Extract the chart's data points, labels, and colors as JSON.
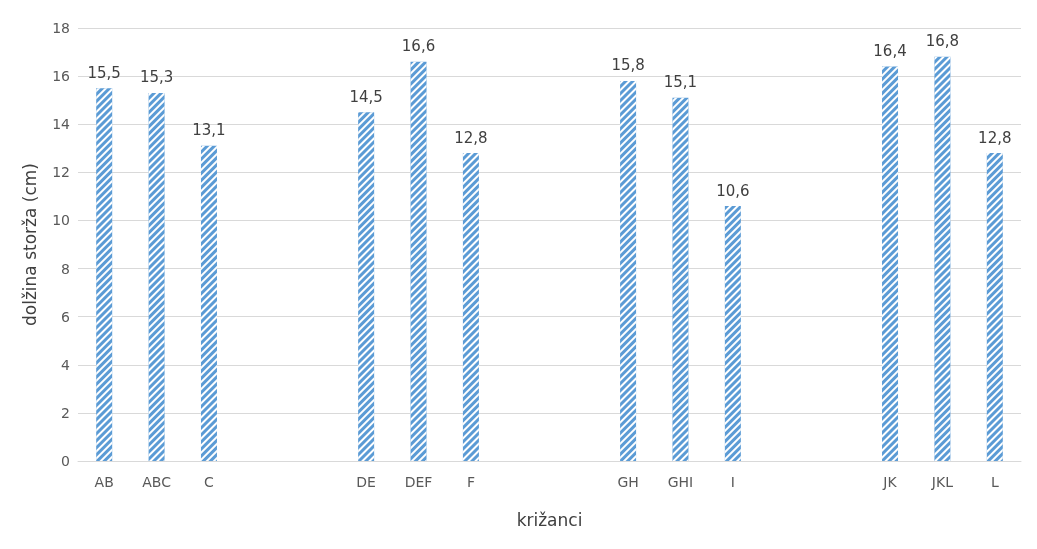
{
  "chart_data": {
    "type": "bar",
    "xlabel": "križanci",
    "ylabel": "dolžina storža (cm)",
    "categories": [
      "AB",
      "ABC",
      "C",
      null,
      null,
      "DE",
      "DEF",
      "F",
      null,
      null,
      "GH",
      "GHI",
      "I",
      null,
      null,
      "JK",
      "JKL",
      "L"
    ],
    "values": [
      15.5,
      15.3,
      13.1,
      null,
      null,
      14.5,
      16.6,
      12.8,
      null,
      null,
      15.8,
      15.1,
      10.6,
      null,
      null,
      16.4,
      16.8,
      12.8
    ],
    "value_labels": [
      "15,5",
      "15,3",
      "13,1",
      null,
      null,
      "14,5",
      "16,6",
      "12,8",
      null,
      null,
      "15,8",
      "15,1",
      "10,6",
      null,
      null,
      "16,4",
      "16,8",
      "12,8"
    ],
    "color": "#5b9bd5",
    "ylim": [
      0,
      18
    ],
    "yticks": [
      0,
      2,
      4,
      6,
      8,
      10,
      12,
      14,
      16,
      18
    ],
    "grid": "y"
  }
}
